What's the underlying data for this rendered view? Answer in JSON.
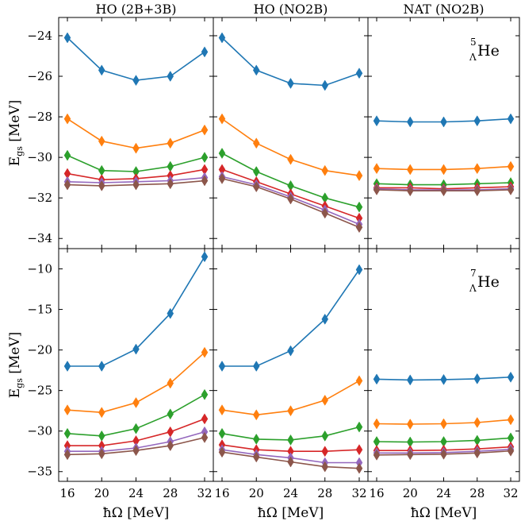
{
  "chart_data": {
    "type": "line",
    "x": [
      16,
      20,
      24,
      28,
      32
    ],
    "xlabel": "ħΩ [MeV]",
    "xticks": [
      "16",
      "20",
      "24",
      "28",
      "32"
    ],
    "column_titles": [
      "HO (2B+3B)",
      "HO (NO2B)",
      "NAT (NO2B)"
    ],
    "series_colors": [
      "#1f77b4",
      "#ff7f0e",
      "#2ca02c",
      "#d62728",
      "#9467bd",
      "#8c564b"
    ],
    "marker": "thin-diamond",
    "rows": [
      {
        "ylabel": "E_gs [MeV]",
        "ylabel_main": "E",
        "ylabel_sub": "gs",
        "ylabel_unit": "[MeV]",
        "annotation": {
          "mass": "5",
          "lambda": "Λ",
          "element": "He"
        },
        "ylim": [
          -34.5,
          -23.1
        ],
        "yticks": [
          -24,
          -26,
          -28,
          -30,
          -32,
          -34
        ],
        "ytick_labels": [
          "−24",
          "−26",
          "−28",
          "−30",
          "−32",
          "−34"
        ],
        "panels": [
          {
            "series": [
              [
                -24.1,
                -25.7,
                -26.2,
                -26.0,
                -24.8
              ],
              [
                -28.1,
                -29.2,
                -29.55,
                -29.3,
                -28.65
              ],
              [
                -29.9,
                -30.65,
                -30.7,
                -30.45,
                -30.0
              ],
              [
                -30.8,
                -31.1,
                -31.05,
                -30.9,
                -30.6
              ],
              [
                -31.2,
                -31.25,
                -31.2,
                -31.15,
                -31.0
              ],
              [
                -31.35,
                -31.4,
                -31.35,
                -31.3,
                -31.15
              ]
            ]
          },
          {
            "series": [
              [
                -24.1,
                -25.7,
                -26.35,
                -26.45,
                -25.85
              ],
              [
                -28.1,
                -29.3,
                -30.1,
                -30.65,
                -30.9
              ],
              [
                -29.8,
                -30.7,
                -31.4,
                -32.0,
                -32.45
              ],
              [
                -30.6,
                -31.2,
                -31.8,
                -32.4,
                -33.0
              ],
              [
                -30.95,
                -31.35,
                -31.95,
                -32.6,
                -33.3
              ],
              [
                -31.05,
                -31.45,
                -32.05,
                -32.75,
                -33.45
              ]
            ]
          },
          {
            "series": [
              [
                -28.2,
                -28.25,
                -28.25,
                -28.2,
                -28.1
              ],
              [
                -30.55,
                -30.6,
                -30.6,
                -30.55,
                -30.45
              ],
              [
                -31.3,
                -31.35,
                -31.35,
                -31.3,
                -31.25
              ],
              [
                -31.5,
                -31.5,
                -31.55,
                -31.5,
                -31.45
              ],
              [
                -31.55,
                -31.6,
                -31.6,
                -31.6,
                -31.55
              ],
              [
                -31.6,
                -31.65,
                -31.65,
                -31.65,
                -31.6
              ]
            ]
          }
        ]
      },
      {
        "ylabel": "E_gs [MeV]",
        "ylabel_main": "E",
        "ylabel_sub": "gs",
        "ylabel_unit": "[MeV]",
        "annotation": {
          "mass": "7",
          "lambda": "Λ",
          "element": "He"
        },
        "ylim": [
          -36.2,
          -7.5
        ],
        "yticks": [
          -10,
          -15,
          -20,
          -25,
          -30,
          -35
        ],
        "ytick_labels": [
          "−10",
          "−15",
          "−20",
          "−25",
          "−30",
          "−35"
        ],
        "panels": [
          {
            "series": [
              [
                -22.0,
                -22.0,
                -19.9,
                -15.5,
                -8.5
              ],
              [
                -27.4,
                -27.7,
                -26.5,
                -24.1,
                -20.3
              ],
              [
                -30.3,
                -30.6,
                -29.7,
                -27.9,
                -25.5
              ],
              [
                -31.8,
                -31.8,
                -31.2,
                -30.1,
                -28.5
              ],
              [
                -32.5,
                -32.5,
                -32.1,
                -31.3,
                -30.1
              ],
              [
                -32.9,
                -32.8,
                -32.4,
                -31.8,
                -30.8
              ]
            ]
          },
          {
            "series": [
              [
                -22.0,
                -22.0,
                -20.1,
                -16.2,
                -10.1
              ],
              [
                -27.4,
                -28.0,
                -27.5,
                -26.2,
                -23.8
              ],
              [
                -30.3,
                -31.0,
                -31.1,
                -30.6,
                -29.5
              ],
              [
                -31.7,
                -32.3,
                -32.5,
                -32.5,
                -32.3
              ],
              [
                -32.3,
                -32.9,
                -33.3,
                -33.9,
                -33.9
              ],
              [
                -32.6,
                -33.2,
                -33.8,
                -34.4,
                -34.6
              ]
            ]
          },
          {
            "series": [
              [
                -23.6,
                -23.7,
                -23.65,
                -23.55,
                -23.35
              ],
              [
                -29.1,
                -29.15,
                -29.1,
                -28.95,
                -28.6
              ],
              [
                -31.3,
                -31.35,
                -31.3,
                -31.15,
                -30.85
              ],
              [
                -32.4,
                -32.4,
                -32.35,
                -32.2,
                -31.95
              ],
              [
                -32.7,
                -32.7,
                -32.65,
                -32.5,
                -32.25
              ],
              [
                -32.95,
                -32.9,
                -32.85,
                -32.7,
                -32.45
              ]
            ]
          }
        ]
      }
    ]
  }
}
